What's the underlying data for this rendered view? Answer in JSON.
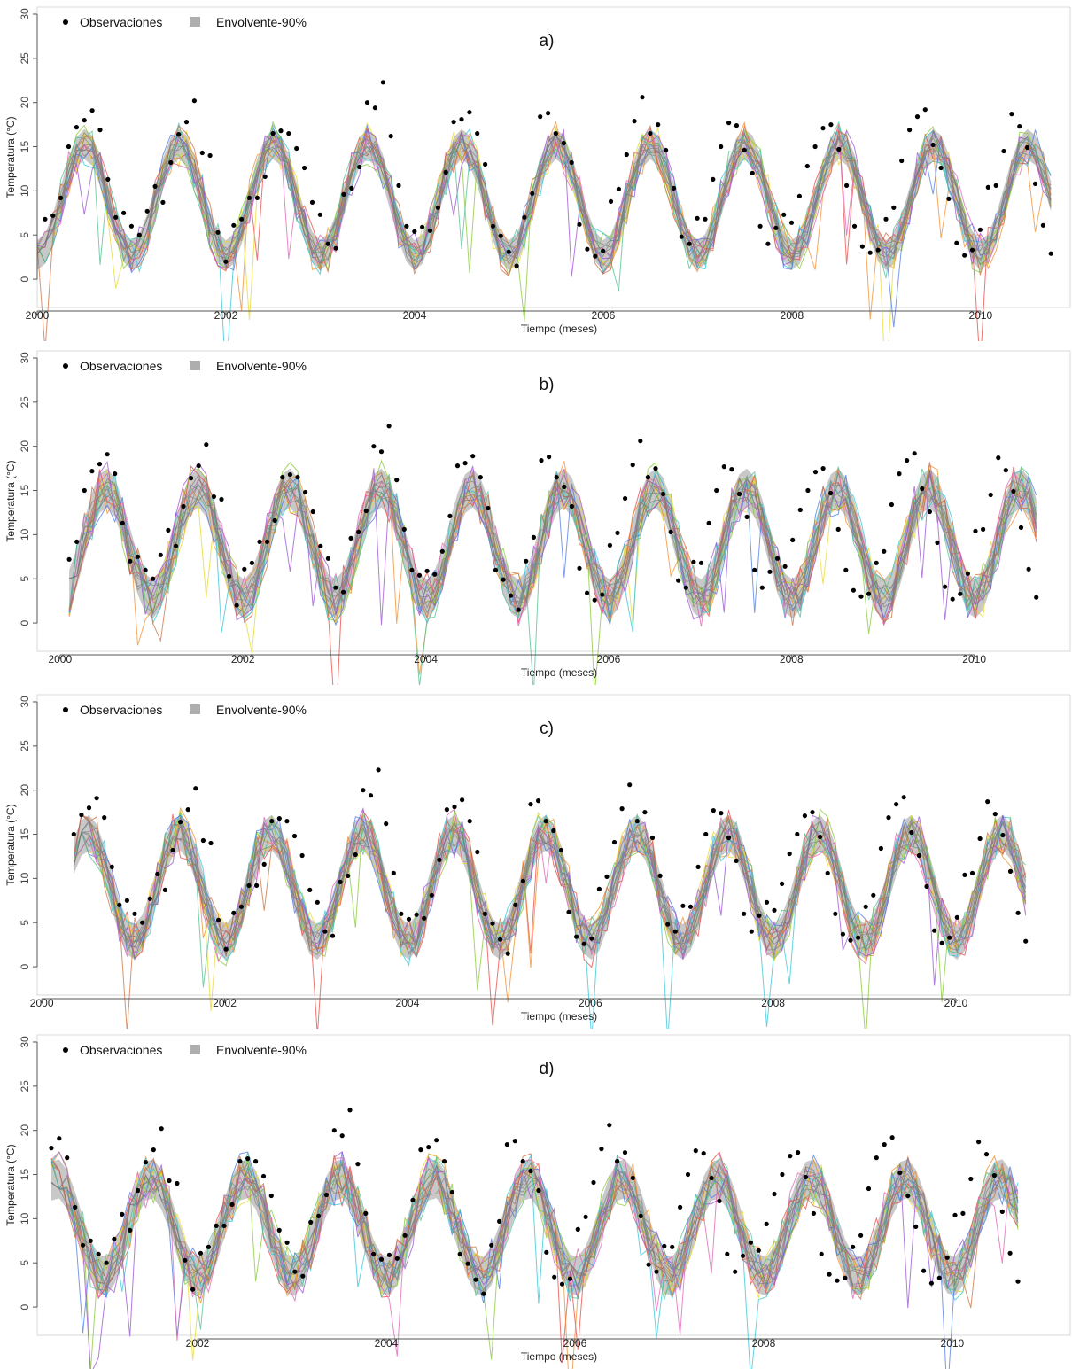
{
  "figure": {
    "legend": {
      "obs_label": "Observaciones",
      "env_label": "Envolvente-90%"
    },
    "xlabel": "Tiempo (meses)",
    "ylabel": "Temperatura (°C)",
    "y_ticks": [
      "0",
      "5",
      "10",
      "15",
      "20",
      "25",
      "30"
    ],
    "x_ticks": [
      "2000",
      "2002",
      "2004",
      "2006",
      "2008",
      "2010"
    ],
    "panel_d_x_ticks": [
      "2002",
      "2004",
      "2006",
      "2008",
      "2010"
    ],
    "colors": {
      "observations": "#000000",
      "envelope": "#9a9a9a",
      "ensemble": [
        "#e8463f",
        "#f08c2a",
        "#e8d82a",
        "#86c832",
        "#2fc4d8",
        "#4a78e0",
        "#9a4fd0",
        "#e060b8",
        "#4fbf8f",
        "#c86f40"
      ]
    }
  },
  "chart_data": [
    {
      "type": "line",
      "label": "a)",
      "xlabel": "Tiempo (meses)",
      "ylabel": "Temperatura (°C)",
      "xlim": [
        2000.0,
        2010.95
      ],
      "ylim": [
        0,
        30
      ],
      "x_ticks": [
        2000,
        2002,
        2004,
        2006,
        2008,
        2010
      ],
      "grid": false,
      "legend": "top-left",
      "series": [
        {
          "name": "Observaciones",
          "kind": "points",
          "x_start": 2000.0,
          "step": 0.0833,
          "values": [
            2.5,
            6.8,
            7.2,
            9.2,
            15.0,
            17.2,
            18.0,
            19.1,
            16.9,
            11.3,
            7.0,
            7.5,
            6.0,
            5.0,
            7.7,
            10.5,
            8.7,
            13.2,
            16.4,
            17.8,
            20.2,
            14.3,
            14.0,
            5.3,
            2.0,
            6.1,
            6.8,
            9.2,
            9.2,
            11.6,
            16.5,
            16.8,
            16.5,
            14.8,
            12.6,
            8.7,
            7.3,
            4.0,
            3.5,
            9.6,
            10.3,
            12.7,
            20.0,
            19.4,
            22.3,
            16.2,
            10.6,
            6.0,
            5.4,
            5.9,
            5.5,
            8.1,
            12.1,
            17.8,
            18.1,
            18.9,
            16.5,
            13.0,
            6.0,
            4.9,
            3.1,
            1.5,
            7.0,
            9.7,
            18.4,
            18.8,
            16.5,
            15.4,
            13.2,
            6.2,
            3.4,
            2.6,
            3.2,
            8.8,
            10.2,
            14.1,
            17.9,
            20.6,
            16.5,
            17.5,
            14.6,
            10.3,
            4.8,
            4.0,
            6.9,
            6.8,
            11.3,
            15.0,
            17.7,
            17.4,
            14.6,
            12.0,
            6.0,
            4.0,
            5.8,
            7.3,
            6.4,
            9.4,
            12.8,
            15.0,
            17.1,
            17.5,
            14.7,
            10.6,
            6.0,
            3.7,
            3.0,
            3.3,
            6.8,
            8.1,
            13.4,
            16.9,
            18.4,
            19.2,
            15.2,
            12.6,
            9.1,
            4.1,
            2.7,
            3.3,
            5.6,
            10.4,
            10.6,
            14.5,
            18.7,
            17.3,
            14.9,
            10.8,
            6.1,
            2.9
          ]
        },
        {
          "name": "Envolvente-90%",
          "kind": "envelope",
          "center_amp": 6.3,
          "center_mean": 9.0,
          "phase": 0.54,
          "width_lo": 1.7,
          "width_hi": 1.7
        }
      ]
    },
    {
      "type": "line",
      "label": "b)",
      "xlabel": "Tiempo (meses)",
      "ylabel": "Temperatura (°C)",
      "xlim": [
        1999.75,
        2011.05
      ],
      "ylim": [
        0,
        30
      ],
      "x_ticks": [
        2000,
        2002,
        2004,
        2006,
        2008,
        2010
      ],
      "grid": false,
      "legend": "top-left",
      "series": [
        {
          "name": "Observaciones",
          "kind": "points",
          "x_start": 2000.1,
          "step": 0.0833,
          "values": [
            7.2,
            9.2,
            15.0,
            17.2,
            18.0,
            19.1,
            16.9,
            11.3,
            7.0,
            7.5,
            6.0,
            5.0,
            7.7,
            10.5,
            8.7,
            13.2,
            16.4,
            17.8,
            20.2,
            14.3,
            14.0,
            5.3,
            2.0,
            6.1,
            6.8,
            9.2,
            9.2,
            11.6,
            16.5,
            16.8,
            16.5,
            14.8,
            12.6,
            8.7,
            7.3,
            4.0,
            3.5,
            9.6,
            10.3,
            12.7,
            20.0,
            19.4,
            22.3,
            16.2,
            10.6,
            6.0,
            5.4,
            5.9,
            5.5,
            8.1,
            12.1,
            17.8,
            18.1,
            18.9,
            16.5,
            13.0,
            6.0,
            4.9,
            3.1,
            1.5,
            7.0,
            9.7,
            18.4,
            18.8,
            16.5,
            15.4,
            13.2,
            6.2,
            3.4,
            2.6,
            3.2,
            8.8,
            10.2,
            14.1,
            17.9,
            20.6,
            16.5,
            17.5,
            14.6,
            10.3,
            4.8,
            4.0,
            6.9,
            6.8,
            11.3,
            15.0,
            17.7,
            17.4,
            14.6,
            12.0,
            6.0,
            4.0,
            5.8,
            7.3,
            6.4,
            9.4,
            12.8,
            15.0,
            17.1,
            17.5,
            14.7,
            10.6,
            6.0,
            3.7,
            3.0,
            3.3,
            6.8,
            8.1,
            13.4,
            16.9,
            18.4,
            19.2,
            15.2,
            12.6,
            9.1,
            4.1,
            2.7,
            3.3,
            5.6,
            10.4,
            10.6,
            14.5,
            18.7,
            17.3,
            14.9,
            10.8,
            6.1,
            2.9
          ]
        },
        {
          "name": "Envolvente-90%",
          "kind": "envelope",
          "center_amp": 6.3,
          "center_mean": 9.0,
          "phase": 0.54,
          "width_lo": 2.2,
          "width_hi": 2.2
        }
      ]
    },
    {
      "type": "line",
      "label": "c)",
      "xlabel": "Tiempo (meses)",
      "ylabel": "Temperatura (°C)",
      "xlim": [
        1999.95,
        2011.25
      ],
      "ylim": [
        0,
        30
      ],
      "x_ticks": [
        2000,
        2002,
        2004,
        2006,
        2008,
        2010
      ],
      "grid": false,
      "legend": "top-left",
      "series": [
        {
          "name": "Observaciones",
          "kind": "points",
          "x_start": 2000.35,
          "step": 0.0833,
          "values": [
            15.0,
            17.2,
            18.0,
            19.1,
            16.9,
            11.3,
            7.0,
            7.5,
            6.0,
            5.0,
            7.7,
            10.5,
            8.7,
            13.2,
            16.4,
            17.8,
            20.2,
            14.3,
            14.0,
            5.3,
            2.0,
            6.1,
            6.8,
            9.2,
            9.2,
            11.6,
            16.5,
            16.8,
            16.5,
            14.8,
            12.6,
            8.7,
            7.3,
            4.0,
            3.5,
            9.6,
            10.3,
            12.7,
            20.0,
            19.4,
            22.3,
            16.2,
            10.6,
            6.0,
            5.4,
            5.9,
            5.5,
            8.1,
            12.1,
            17.8,
            18.1,
            18.9,
            16.5,
            13.0,
            6.0,
            4.9,
            3.1,
            1.5,
            7.0,
            9.7,
            18.4,
            18.8,
            16.5,
            15.4,
            13.2,
            6.2,
            3.4,
            2.6,
            3.2,
            8.8,
            10.2,
            14.1,
            17.9,
            20.6,
            16.5,
            17.5,
            14.6,
            10.3,
            4.8,
            4.0,
            6.9,
            6.8,
            11.3,
            15.0,
            17.7,
            17.4,
            14.6,
            12.0,
            6.0,
            4.0,
            5.8,
            7.3,
            6.4,
            9.4,
            12.8,
            15.0,
            17.1,
            17.5,
            14.7,
            10.6,
            6.0,
            3.7,
            3.0,
            3.3,
            6.8,
            8.1,
            13.4,
            16.9,
            18.4,
            19.2,
            15.2,
            12.6,
            9.1,
            4.1,
            2.7,
            3.3,
            5.6,
            10.4,
            10.6,
            14.5,
            18.7,
            17.3,
            14.9,
            10.8,
            6.1,
            2.9
          ]
        },
        {
          "name": "Envolvente-90%",
          "kind": "envelope",
          "center_amp": 6.2,
          "center_mean": 9.0,
          "phase": 0.54,
          "width_lo": 2.0,
          "width_hi": 2.0
        }
      ]
    },
    {
      "type": "line",
      "label": "d)",
      "xlabel": "Tiempo (meses)",
      "ylabel": "Temperatura (°C)",
      "xlim": [
        2000.3,
        2011.25
      ],
      "ylim": [
        0,
        30
      ],
      "x_ticks": [
        2002,
        2004,
        2006,
        2008,
        2010
      ],
      "grid": false,
      "legend": "top-left",
      "series": [
        {
          "name": "Observaciones",
          "kind": "points",
          "x_start": 2000.45,
          "step": 0.0833,
          "values": [
            18.0,
            19.1,
            16.9,
            11.3,
            7.0,
            7.5,
            6.0,
            5.0,
            7.7,
            10.5,
            8.7,
            13.2,
            16.4,
            17.8,
            20.2,
            14.3,
            14.0,
            5.3,
            2.0,
            6.1,
            6.8,
            9.2,
            9.2,
            11.6,
            16.5,
            16.8,
            16.5,
            14.8,
            12.6,
            8.7,
            7.3,
            4.0,
            3.5,
            9.6,
            10.3,
            12.7,
            20.0,
            19.4,
            22.3,
            16.2,
            10.6,
            6.0,
            5.4,
            5.9,
            5.5,
            8.1,
            12.1,
            17.8,
            18.1,
            18.9,
            16.5,
            13.0,
            6.0,
            4.9,
            3.1,
            1.5,
            7.0,
            9.7,
            18.4,
            18.8,
            16.5,
            15.4,
            13.2,
            6.2,
            3.4,
            2.6,
            3.2,
            8.8,
            10.2,
            14.1,
            17.9,
            20.6,
            16.5,
            17.5,
            14.6,
            10.3,
            4.8,
            4.0,
            6.9,
            6.8,
            11.3,
            15.0,
            17.7,
            17.4,
            14.6,
            12.0,
            6.0,
            4.0,
            5.8,
            7.3,
            6.4,
            9.4,
            12.8,
            15.0,
            17.1,
            17.5,
            14.7,
            10.6,
            6.0,
            3.7,
            3.0,
            3.3,
            6.8,
            8.1,
            13.4,
            16.9,
            18.4,
            19.2,
            15.2,
            12.6,
            9.1,
            4.1,
            2.7,
            3.3,
            5.6,
            10.4,
            10.6,
            14.5,
            18.7,
            17.3,
            14.9,
            10.8,
            6.1,
            2.9
          ]
        },
        {
          "name": "Envolvente-90%",
          "kind": "envelope",
          "center_amp": 5.6,
          "center_mean": 9.0,
          "phase": 0.54,
          "width_lo": 2.2,
          "width_hi": 2.2
        }
      ]
    }
  ]
}
